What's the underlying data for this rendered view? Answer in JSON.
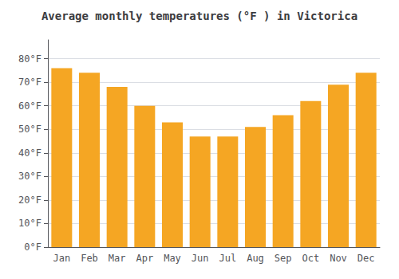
{
  "chart_data": {
    "type": "bar",
    "title": "Average monthly temperatures (°F ) in Victorica",
    "categories": [
      "Jan",
      "Feb",
      "Mar",
      "Apr",
      "May",
      "Jun",
      "Jul",
      "Aug",
      "Sep",
      "Oct",
      "Nov",
      "Dec"
    ],
    "values": [
      76,
      74,
      68,
      60,
      53,
      47,
      47,
      51,
      56,
      62,
      69,
      74
    ],
    "color": "#F5A623",
    "ylim": [
      0,
      88
    ],
    "yticks": [
      {
        "value": 0,
        "label": "0°F"
      },
      {
        "value": 10,
        "label": "10°F"
      },
      {
        "value": 20,
        "label": "20°F"
      },
      {
        "value": 30,
        "label": "30°F"
      },
      {
        "value": 40,
        "label": "40°F"
      },
      {
        "value": 50,
        "label": "50°F"
      },
      {
        "value": 60,
        "label": "60°F"
      },
      {
        "value": 70,
        "label": "70°F"
      },
      {
        "value": 80,
        "label": "80°F"
      }
    ],
    "grid": true
  }
}
